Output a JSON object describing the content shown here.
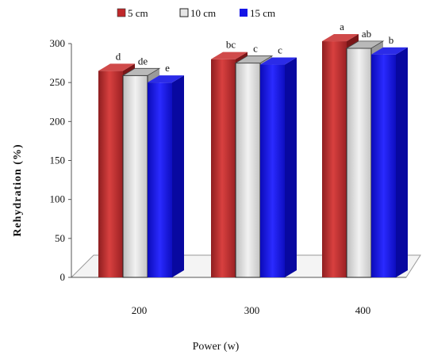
{
  "chart_data": {
    "type": "bar",
    "title": "",
    "xlabel": "Power (w)",
    "ylabel": "Rehydration  (%)",
    "ylim": [
      0,
      300
    ],
    "yticks": [
      0,
      50,
      100,
      150,
      200,
      250,
      300
    ],
    "categories": [
      "200",
      "300",
      "400"
    ],
    "series": [
      {
        "name": "5 cm",
        "values": [
          265,
          280,
          303
        ],
        "labels": [
          "d",
          "bc",
          "a"
        ],
        "color": "#c0282a"
      },
      {
        "name": "10 cm",
        "values": [
          259,
          275,
          294
        ],
        "labels": [
          "de",
          "c",
          "ab"
        ],
        "color": "#d8d8d8"
      },
      {
        "name": "15 cm",
        "values": [
          250,
          273,
          286
        ],
        "labels": [
          "e",
          "c",
          "b"
        ],
        "color": "#1414e6"
      }
    ],
    "legend_position": "top-center",
    "grid": false,
    "style": "3d-bars"
  }
}
